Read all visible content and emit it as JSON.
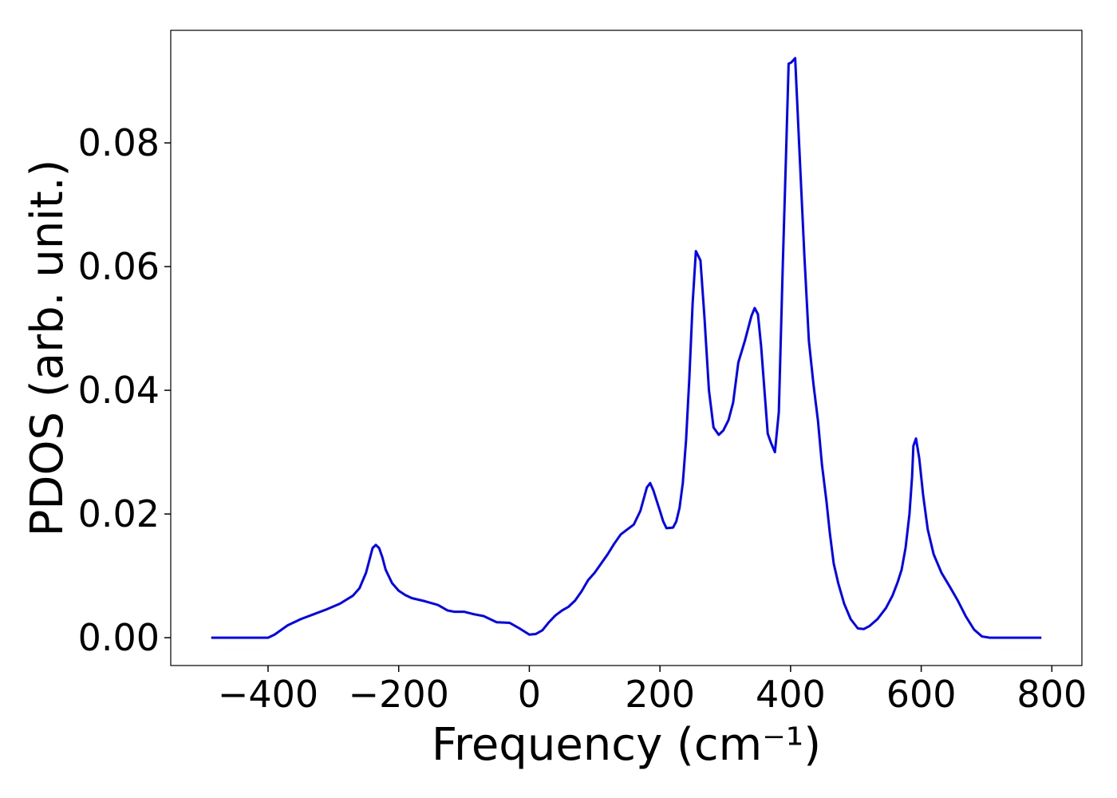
{
  "chart_data": {
    "type": "line",
    "xlabel": "Frequency (cm⁻¹)",
    "ylabel": "PDOS (arb. unit.)",
    "xlim": [
      -549,
      846
    ],
    "ylim": [
      -0.0045,
      0.0982
    ],
    "xticks": [
      {
        "value": -400,
        "label": "−400"
      },
      {
        "value": -200,
        "label": "−200"
      },
      0,
      200,
      400,
      600,
      800
    ],
    "yticks": [
      {
        "value": 0,
        "label": "0.00"
      },
      {
        "value": 0.02,
        "label": "0.02"
      },
      {
        "value": 0.04,
        "label": "0.04"
      },
      {
        "value": 0.06,
        "label": "0.06"
      },
      {
        "value": 0.08,
        "label": "0.08"
      }
    ],
    "series": [
      {
        "color": "#0000ff",
        "x": [
          -487,
          -400,
          -390,
          -370,
          -350,
          -330,
          -310,
          -290,
          -270,
          -260,
          -250,
          -245,
          -240,
          -235,
          -230,
          -225,
          -220,
          -210,
          -200,
          -190,
          -180,
          -160,
          -140,
          -125,
          -115,
          -100,
          -85,
          -70,
          -60,
          -50,
          -30,
          -15,
          0,
          10,
          20,
          30,
          40,
          50,
          60,
          70,
          80,
          90,
          100,
          110,
          120,
          130,
          140,
          150,
          160,
          170,
          180,
          185,
          190,
          200,
          205,
          210,
          220,
          225,
          230,
          235,
          240,
          245,
          250,
          255,
          262,
          268,
          275,
          282,
          290,
          297,
          305,
          312,
          320,
          330,
          340,
          345,
          350,
          355,
          360,
          365,
          370,
          376,
          382,
          388,
          393,
          397,
          401,
          407,
          413,
          421,
          428,
          435,
          442,
          448,
          455,
          460,
          466,
          473,
          482,
          492,
          503,
          512,
          521,
          533,
          546,
          556,
          564,
          570,
          576,
          582,
          586,
          588,
          592,
          597,
          603,
          610,
          619,
          631,
          644,
          656,
          668,
          681,
          693,
          705,
          784
        ],
        "values": [
          0,
          0,
          0.0005,
          0.002,
          0.003,
          0.0038,
          0.0046,
          0.0055,
          0.0068,
          0.008,
          0.0105,
          0.0125,
          0.0145,
          0.015,
          0.0145,
          0.013,
          0.011,
          0.0088,
          0.0076,
          0.0069,
          0.0064,
          0.0059,
          0.0053,
          0.0044,
          0.0042,
          0.0042,
          0.0038,
          0.0035,
          0.003,
          0.0025,
          0.0024,
          0.0015,
          0.0005,
          0.0006,
          0.0012,
          0.0025,
          0.0036,
          0.0044,
          0.005,
          0.006,
          0.0075,
          0.0093,
          0.0105,
          0.012,
          0.0135,
          0.0152,
          0.0167,
          0.0175,
          0.0183,
          0.0205,
          0.0243,
          0.025,
          0.0238,
          0.0205,
          0.0188,
          0.0177,
          0.0178,
          0.0188,
          0.021,
          0.025,
          0.032,
          0.042,
          0.054,
          0.0625,
          0.061,
          0.052,
          0.04,
          0.034,
          0.0328,
          0.0335,
          0.0352,
          0.038,
          0.0445,
          0.048,
          0.052,
          0.0533,
          0.0523,
          0.047,
          0.04,
          0.033,
          0.0315,
          0.03,
          0.0365,
          0.06,
          0.078,
          0.0928,
          0.093,
          0.0937,
          0.08,
          0.062,
          0.048,
          0.041,
          0.035,
          0.028,
          0.022,
          0.017,
          0.012,
          0.0088,
          0.0055,
          0.003,
          0.0015,
          0.0014,
          0.0019,
          0.003,
          0.0048,
          0.0068,
          0.009,
          0.011,
          0.0145,
          0.02,
          0.026,
          0.031,
          0.0322,
          0.029,
          0.023,
          0.0175,
          0.0135,
          0.0105,
          0.0082,
          0.006,
          0.0035,
          0.0013,
          0.0002,
          0,
          0
        ]
      }
    ]
  }
}
